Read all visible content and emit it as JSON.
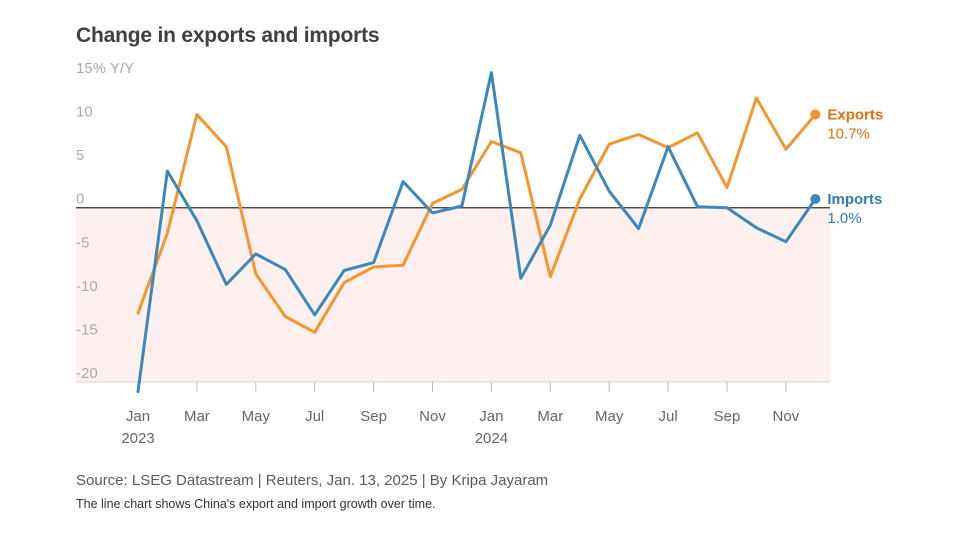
{
  "header": {
    "title": "Change in exports and imports"
  },
  "footer": {
    "source": "Source: LSEG Datastream | Reuters, Jan. 13, 2025 | By Kripa Jayaram",
    "caption": "The line chart shows China's export and import growth over time."
  },
  "chart_data": {
    "type": "line",
    "title": "Change in exports and imports",
    "ylabel": "% Y/Y",
    "ylim": [
      -20,
      15
    ],
    "yticks": [
      15,
      10,
      5,
      0,
      -5,
      -10,
      -15,
      -20
    ],
    "ytick_labels": [
      "15% Y/Y",
      "10",
      "5",
      "0",
      "-5",
      "-10",
      "-15",
      "-20"
    ],
    "x": [
      "2023-01",
      "2023-02",
      "2023-03",
      "2023-04",
      "2023-05",
      "2023-06",
      "2023-07",
      "2023-08",
      "2023-09",
      "2023-10",
      "2023-11",
      "2023-12",
      "2024-01",
      "2024-02",
      "2024-03",
      "2024-04",
      "2024-05",
      "2024-06",
      "2024-07",
      "2024-08",
      "2024-09",
      "2024-10",
      "2024-11",
      "2024-12"
    ],
    "xtick_labels": [
      {
        "x": "2023-01",
        "month": "Jan",
        "year": "2023"
      },
      {
        "x": "2023-03",
        "month": "Mar",
        "year": ""
      },
      {
        "x": "2023-05",
        "month": "May",
        "year": ""
      },
      {
        "x": "2023-07",
        "month": "Jul",
        "year": ""
      },
      {
        "x": "2023-09",
        "month": "Sep",
        "year": ""
      },
      {
        "x": "2023-11",
        "month": "Nov",
        "year": ""
      },
      {
        "x": "2024-01",
        "month": "Jan",
        "year": "2024"
      },
      {
        "x": "2024-03",
        "month": "Mar",
        "year": ""
      },
      {
        "x": "2024-05",
        "month": "May",
        "year": ""
      },
      {
        "x": "2024-07",
        "month": "Jul",
        "year": ""
      },
      {
        "x": "2024-09",
        "month": "Sep",
        "year": ""
      },
      {
        "x": "2024-11",
        "month": "Nov",
        "year": ""
      }
    ],
    "series": [
      {
        "name": "Exports",
        "color": "#f2972e",
        "label_color": "#d9730d",
        "end_label": "10.7%",
        "values": [
          -12.1,
          -2.9,
          10.7,
          7.0,
          -7.6,
          -12.5,
          -14.3,
          -8.6,
          -6.8,
          -6.6,
          0.5,
          2.1,
          7.6,
          6.3,
          -7.9,
          1.0,
          7.3,
          8.4,
          6.9,
          8.6,
          2.3,
          12.6,
          6.7,
          10.7
        ]
      },
      {
        "name": "Imports",
        "color": "#3c88bb",
        "label_color": "#2f7cb5",
        "end_label": "1.0%",
        "values": [
          -21.1,
          4.2,
          -1.5,
          -8.8,
          -5.3,
          -7.1,
          -12.3,
          -7.2,
          -6.3,
          3.0,
          -0.6,
          0.2,
          15.5,
          -8.1,
          -2.0,
          8.3,
          1.9,
          -2.4,
          7.0,
          0.1,
          0.0,
          -2.3,
          -3.9,
          1.0
        ]
      }
    ],
    "shaded_region": {
      "from": 0,
      "to": -20,
      "color": "#fdf0ef"
    },
    "zero_line": true,
    "grid": false,
    "legend": "end-labels"
  }
}
